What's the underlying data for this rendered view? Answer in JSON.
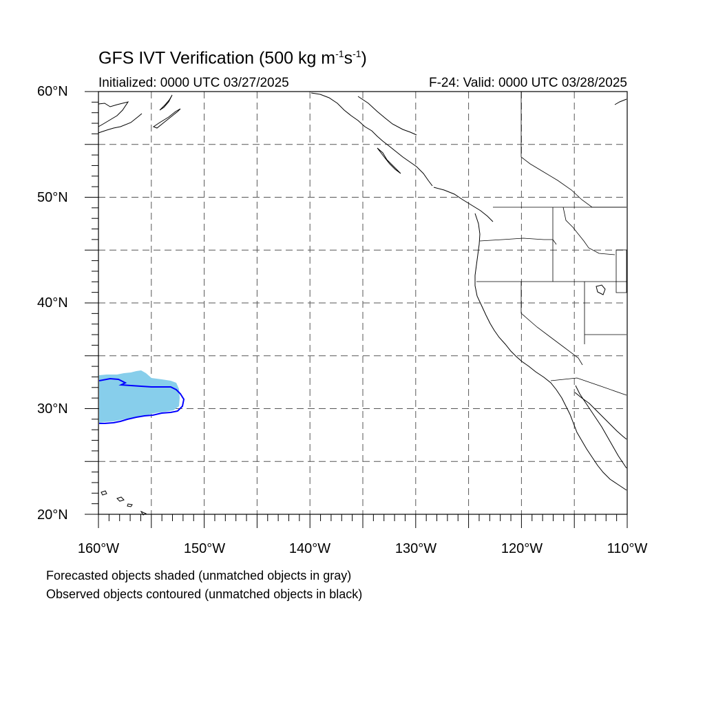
{
  "title": {
    "main": "GFS IVT Verification (500 kg m",
    "sup1": "-1",
    "mid": "s",
    "sup2": "-1",
    "end": ")"
  },
  "init_text": "Initialized: 0000 UTC 03/27/2025",
  "valid_text": "F-24: Valid: 0000 UTC 03/28/2025",
  "map": {
    "lon_range": [
      -160,
      -110
    ],
    "lat_range": [
      20,
      60
    ],
    "lat_labels": [
      "60°N",
      "50°N",
      "40°N",
      "30°N",
      "20°N"
    ],
    "lon_labels": [
      "160°W",
      "150°W",
      "140°W",
      "130°W",
      "120°W",
      "110°W"
    ],
    "gridlines": true,
    "grid_spacing_deg": 5,
    "forecast_object_color": "#87ceeb",
    "observed_object_color": "#0000ff"
  },
  "objects": {
    "forecast": [
      {
        "status": "matched",
        "lon_range": [
          -160,
          -152.5
        ],
        "lat_range": [
          28.5,
          33.5
        ]
      }
    ],
    "observed": [
      {
        "status": "matched",
        "lon_range": [
          -160,
          -152
        ],
        "lat_range": [
          28.6,
          32.8
        ]
      }
    ]
  },
  "footnotes": [
    "Forecasted objects shaded (unmatched objects in gray)",
    "Observed objects contoured (unmatched objects in black)"
  ]
}
